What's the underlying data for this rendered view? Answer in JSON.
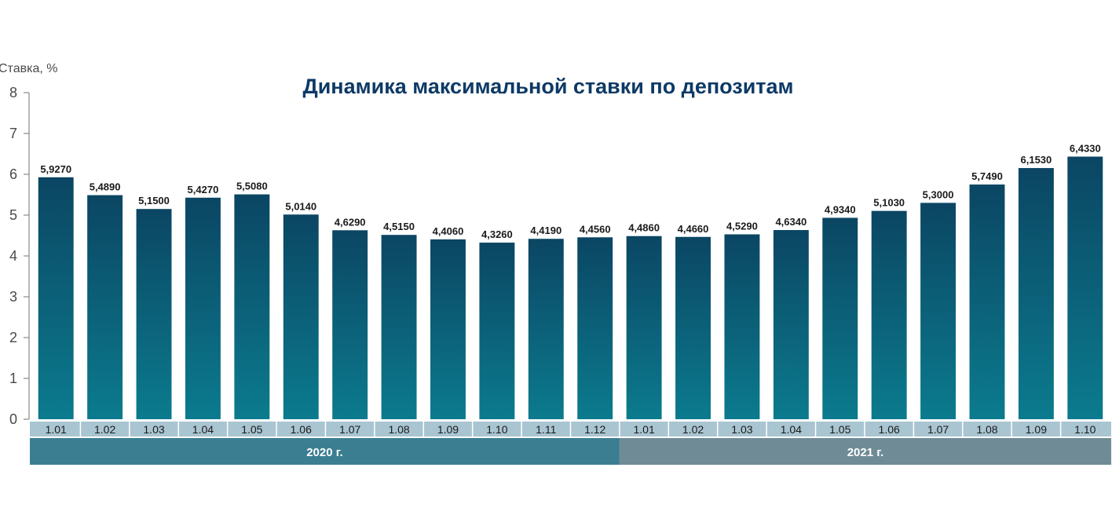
{
  "chart_data": {
    "type": "bar",
    "title": "Динамика максимальной ставки по депозитам",
    "ylabel": "Ставка, %",
    "xlabel": "",
    "ylim": [
      0,
      8
    ],
    "yticks": [
      "0",
      "1",
      "2",
      "3",
      "4",
      "5",
      "6",
      "7",
      "8"
    ],
    "categories": [
      "1.01",
      "1.02",
      "1.03",
      "1.04",
      "1.05",
      "1.06",
      "1.07",
      "1.08",
      "1.09",
      "1.10",
      "1.11",
      "1.12",
      "1.01",
      "1.02",
      "1.03",
      "1.04",
      "1.05",
      "1.06",
      "1.07",
      "1.08",
      "1.09",
      "1.10"
    ],
    "values": [
      5.927,
      5.489,
      5.15,
      5.427,
      5.508,
      5.014,
      4.629,
      4.515,
      4.406,
      4.326,
      4.419,
      4.456,
      4.486,
      4.466,
      4.529,
      4.634,
      4.934,
      5.103,
      5.3,
      5.749,
      6.153,
      6.433
    ],
    "data_labels": [
      "5,9270",
      "5,4890",
      "5,1500",
      "5,4270",
      "5,5080",
      "5,0140",
      "4,6290",
      "4,5150",
      "4,4060",
      "4,3260",
      "4,4190",
      "4,4560",
      "4,4860",
      "4,4660",
      "4,5290",
      "4,6340",
      "4,9340",
      "5,1030",
      "5,3000",
      "5,7490",
      "6,1530",
      "6,4330"
    ],
    "groups": [
      {
        "label": "2020 г.",
        "count": 12
      },
      {
        "label": "2021 г.",
        "count": 10
      }
    ],
    "grid": false,
    "colors": {
      "bar_top": "#0b4663",
      "bar_bottom": "#0b7b8e",
      "title": "#0d3a66",
      "tick_strip": "#a9c5d1",
      "group_2020": "#3b7e92",
      "group_2021": "#6f8c96"
    }
  }
}
